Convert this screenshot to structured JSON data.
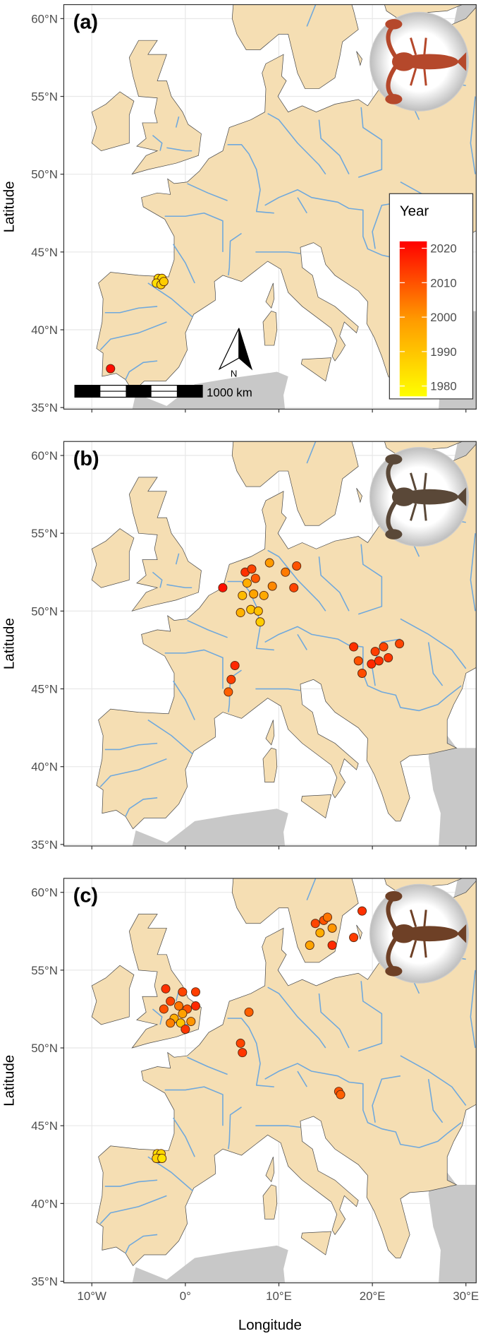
{
  "panels": [
    {
      "label": "(a)",
      "points": [
        [
          -2.9,
          43.3,
          1985
        ],
        [
          -2.5,
          43.3,
          1986
        ],
        [
          -3.1,
          43.0,
          1984
        ],
        [
          -2.6,
          42.9,
          1987
        ],
        [
          -2.3,
          43.1,
          1988
        ],
        [
          -8.0,
          37.5,
          2020
        ]
      ]
    },
    {
      "label": "(b)",
      "points": [
        [
          4.0,
          51.5,
          2020
        ],
        [
          6.4,
          52.5,
          2015
        ],
        [
          7.1,
          52.7,
          2012
        ],
        [
          7.5,
          52.1,
          2009
        ],
        [
          6.6,
          51.8,
          1995
        ],
        [
          6.1,
          51.0,
          1992
        ],
        [
          7.0,
          50.1,
          1990
        ],
        [
          8.0,
          49.3,
          1988
        ],
        [
          7.3,
          51.1,
          1997
        ],
        [
          8.4,
          51.0,
          1996
        ],
        [
          9.0,
          53.1,
          1999
        ],
        [
          10.7,
          52.5,
          2004
        ],
        [
          11.9,
          52.9,
          2010
        ],
        [
          11.6,
          51.5,
          2012
        ],
        [
          9.3,
          51.6,
          2002
        ],
        [
          5.9,
          49.9,
          1994
        ],
        [
          7.8,
          50.0,
          1991
        ],
        [
          4.9,
          45.6,
          2013
        ],
        [
          4.6,
          44.8,
          2008
        ],
        [
          5.3,
          46.5,
          2016
        ],
        [
          18.0,
          47.7,
          2015
        ],
        [
          20.3,
          47.4,
          2013
        ],
        [
          21.2,
          47.7,
          2012
        ],
        [
          21.7,
          47.0,
          2014
        ],
        [
          19.9,
          46.6,
          2016
        ],
        [
          18.9,
          46.0,
          2011
        ],
        [
          18.5,
          46.8,
          2010
        ],
        [
          22.9,
          47.9,
          2012
        ],
        [
          20.7,
          46.8,
          2015
        ]
      ]
    },
    {
      "label": "(c)",
      "points": [
        [
          -2.1,
          53.8,
          2015
        ],
        [
          -1.6,
          53.0,
          2012
        ],
        [
          -0.7,
          52.7,
          2005
        ],
        [
          0.2,
          52.5,
          2010
        ],
        [
          1.1,
          52.7,
          2016
        ],
        [
          -0.3,
          53.6,
          2012
        ],
        [
          -1.2,
          51.9,
          1995
        ],
        [
          -0.5,
          51.6,
          1990
        ],
        [
          0.6,
          51.7,
          2000
        ],
        [
          0.0,
          51.2,
          2014
        ],
        [
          -1.6,
          51.6,
          2003
        ],
        [
          -2.3,
          52.5,
          2010
        ],
        [
          1.1,
          53.6,
          2013
        ],
        [
          -0.3,
          52.2,
          1998
        ],
        [
          6.8,
          52.3,
          2008
        ],
        [
          5.9,
          50.3,
          2012
        ],
        [
          6.1,
          49.7,
          2014
        ],
        [
          16.4,
          47.2,
          2010
        ],
        [
          16.6,
          47.0,
          2008
        ],
        [
          13.9,
          58.0,
          2012
        ],
        [
          14.8,
          58.2,
          2010
        ],
        [
          15.7,
          57.7,
          2000
        ],
        [
          14.4,
          57.4,
          1995
        ],
        [
          15.7,
          56.6,
          2016
        ],
        [
          13.3,
          56.6,
          1997
        ],
        [
          18.0,
          57.1,
          2013
        ],
        [
          18.9,
          58.8,
          2015
        ],
        [
          15.2,
          58.4,
          2005
        ],
        [
          -3.0,
          43.2,
          1984
        ],
        [
          -2.6,
          43.2,
          1986
        ],
        [
          -2.8,
          42.9,
          1985
        ],
        [
          -3.1,
          42.9,
          1987
        ],
        [
          -2.5,
          42.9,
          1983
        ]
      ]
    }
  ],
  "latitude_axis": {
    "title": "Latitude",
    "lim": [
      34.9,
      60.9
    ],
    "ticks": [
      {
        "value": 35,
        "label": "35°N"
      },
      {
        "value": 40,
        "label": "40°N"
      },
      {
        "value": 45,
        "label": "45°N"
      },
      {
        "value": 50,
        "label": "50°N"
      },
      {
        "value": 55,
        "label": "55°N"
      },
      {
        "value": 60,
        "label": "60°N"
      }
    ]
  },
  "longitude_axis": {
    "title": "Longitude",
    "lim": [
      -13,
      31.1
    ],
    "ticks": [
      {
        "value": -10,
        "label": "10°W"
      },
      {
        "value": 0,
        "label": "0°"
      },
      {
        "value": 10,
        "label": "10°E"
      },
      {
        "value": 20,
        "label": "20°E"
      },
      {
        "value": 30,
        "label": "30°E"
      }
    ]
  },
  "legend": {
    "title": "Year",
    "lim": [
      1977,
      2022
    ],
    "ticks": [
      1980,
      1990,
      2000,
      2010,
      2020
    ],
    "colors": [
      "#ffff00",
      "#ff9900",
      "#ff0000"
    ]
  },
  "scale_bar": {
    "label": "1000 km"
  },
  "north_arrow": {
    "label": "N"
  }
}
